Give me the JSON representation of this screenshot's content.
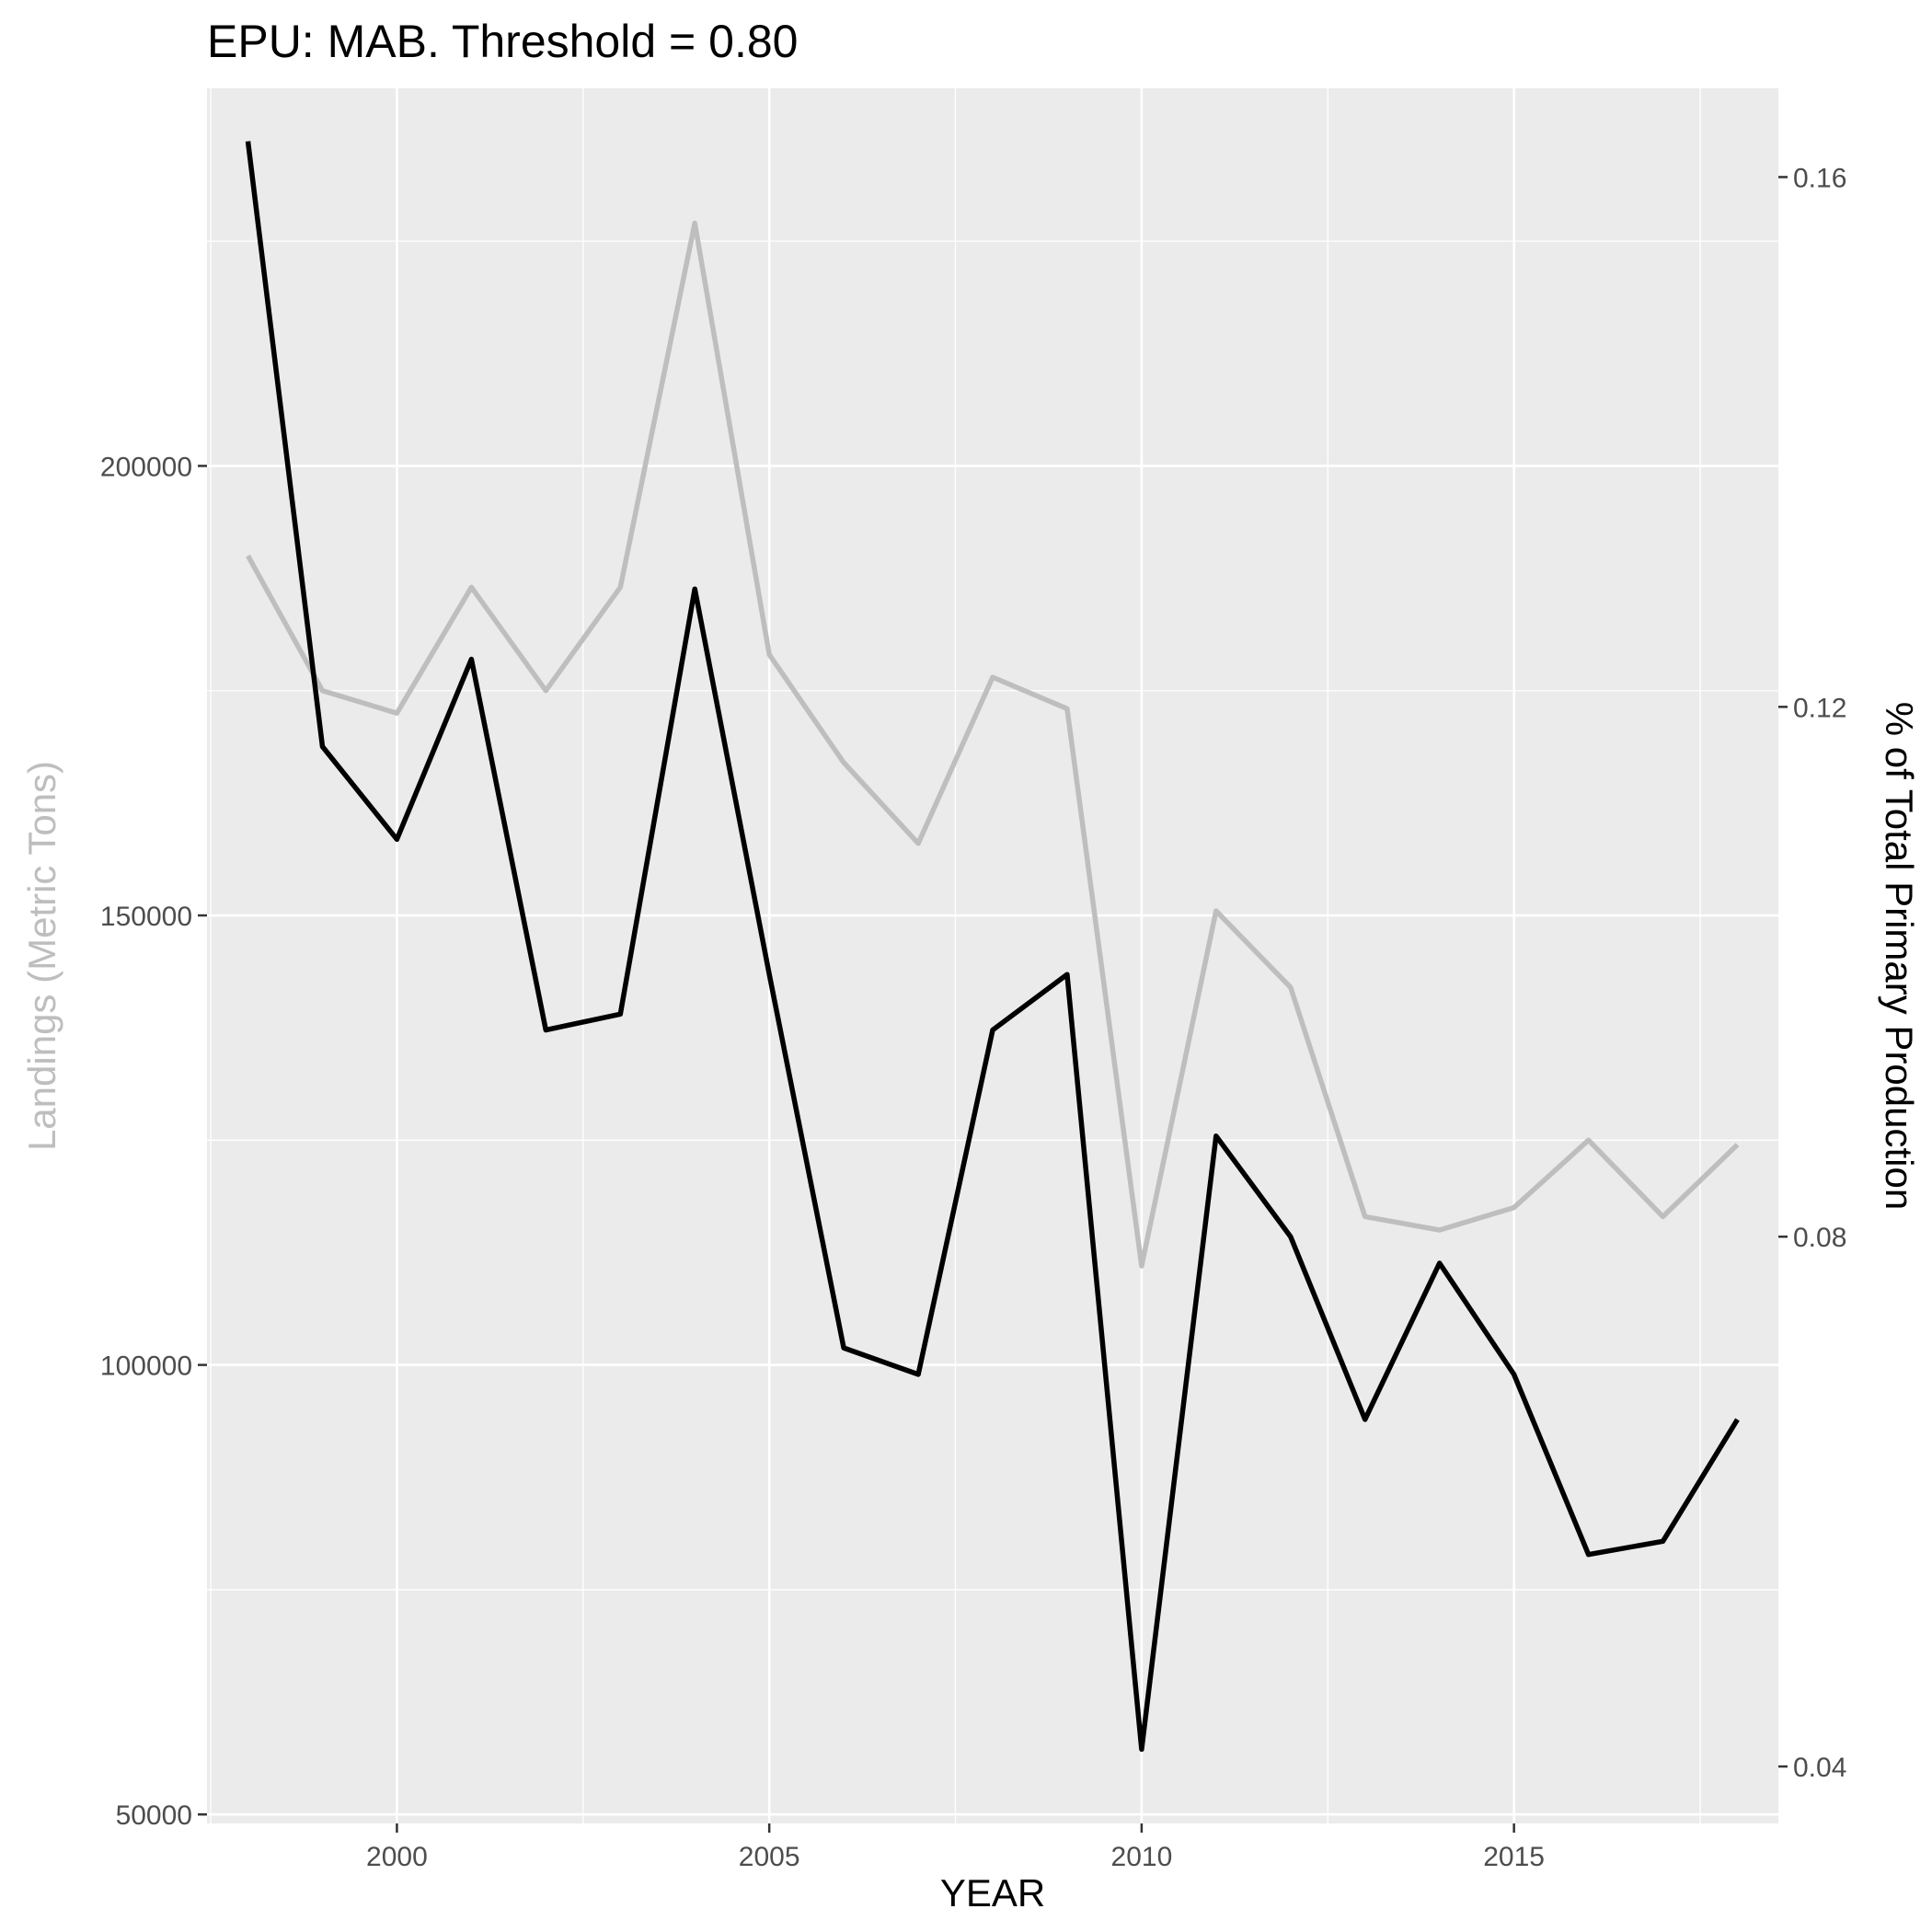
{
  "chart_data": {
    "type": "line",
    "title": "EPU: MAB. Threshold = 0.80",
    "xlabel": "YEAR",
    "ylabel_left": "Landings (Metric Tons)",
    "ylabel_right": "% of Total Primary Production",
    "xlim": [
      1997.45,
      2018.55
    ],
    "ylim_left": [
      49000,
      242000
    ],
    "ylim_right": [
      0.0357,
      0.1667
    ],
    "x_ticks": [
      2000,
      2005,
      2010,
      2015
    ],
    "y_left_ticks": [
      50000,
      100000,
      150000,
      200000
    ],
    "y_right_ticks": [
      0.04,
      0.08,
      0.12,
      0.16
    ],
    "grid": true,
    "colors": {
      "panel": "#ebebeb",
      "grid": "#ffffff",
      "landings": "#bebebe",
      "percent": "#000000",
      "left_axis_title": "#bebebe",
      "right_axis_title": "#000000"
    },
    "x": [
      1998,
      1999,
      2000,
      2001,
      2002,
      2003,
      2004,
      2005,
      2006,
      2007,
      2008,
      2009,
      2010,
      2011,
      2012,
      2013,
      2014,
      2015,
      2016,
      2017,
      2018
    ],
    "series": [
      {
        "axis": "left",
        "values": [
          190000,
          175000,
          172500,
          186500,
          175000,
          186500,
          227000,
          179000,
          167000,
          158000,
          176500,
          173000,
          111000,
          150500,
          142000,
          116500,
          115000,
          117500,
          125000,
          116500,
          124500
        ]
      },
      {
        "axis": "right",
        "values": [
          0.1627,
          0.117,
          0.11,
          0.1236,
          0.0956,
          0.0968,
          0.1289,
          0.0998,
          0.0716,
          0.0696,
          0.0956,
          0.0998,
          0.0413,
          0.0876,
          0.08,
          0.0662,
          0.078,
          0.0696,
          0.056,
          0.057,
          0.0662
        ]
      }
    ]
  }
}
